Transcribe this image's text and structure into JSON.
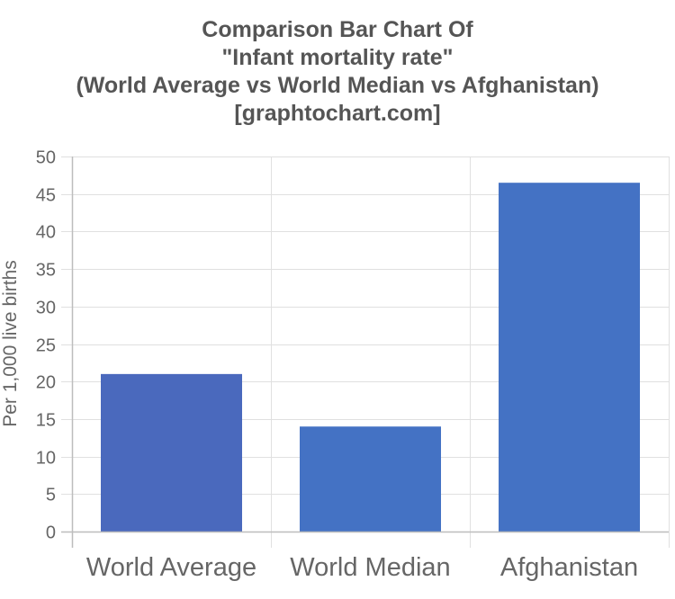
{
  "chart_data": {
    "type": "bar",
    "title_lines": [
      "Comparison Bar Chart Of",
      "\"Infant mortality rate\"",
      "(World Average vs World Median vs Afghanistan)",
      "[graphtochart.com]"
    ],
    "categories": [
      "World Average",
      "World Median",
      "Afghanistan"
    ],
    "values": [
      21,
      14,
      46.5
    ],
    "bar_colors": [
      "#4a69bd",
      "#4472c4",
      "#4472c4"
    ],
    "xlabel": "",
    "ylabel": "Per 1,000 live births",
    "ylim": [
      0,
      50
    ],
    "yticks": [
      0,
      5,
      10,
      15,
      20,
      25,
      30,
      35,
      40,
      45,
      50
    ],
    "grid": true,
    "legend": "none"
  }
}
